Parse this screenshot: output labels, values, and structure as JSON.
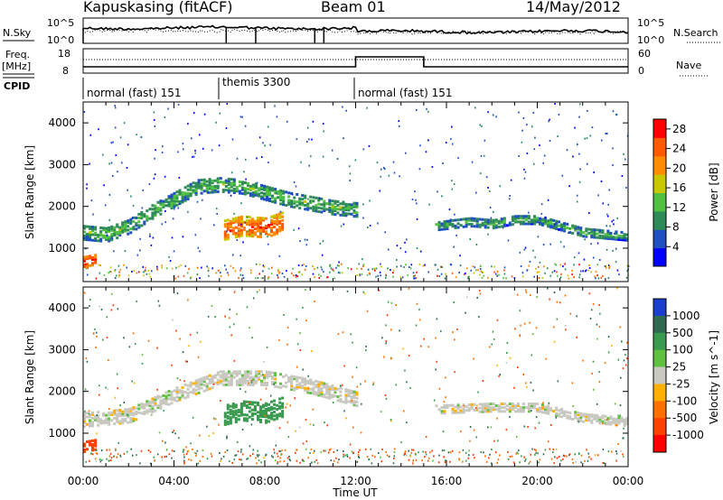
{
  "header": {
    "station": "Kapuskasing (fitACF)",
    "beam": "Beam 01",
    "date": "14/May/2012"
  },
  "noise_panel": {
    "left_label": "N.Sky",
    "right_label": "N.Search",
    "left_ticks": [
      "10^5",
      "10^0"
    ],
    "right_ticks": [
      "10^5",
      "10^0"
    ]
  },
  "freq_panel": {
    "left_label_1": "Freq.",
    "left_label_2": "[MHz]",
    "right_label": "Nave",
    "left_ticks": [
      "18",
      "8"
    ],
    "right_ticks": [
      "60",
      "0"
    ]
  },
  "cpid": {
    "label": "CPID",
    "segments": [
      {
        "label": "normal (fast) 151",
        "start_hour": 0,
        "end_hour": 6
      },
      {
        "label": "themis 3300",
        "start_hour": 6,
        "end_hour": 12
      },
      {
        "label": "normal (fast) 151",
        "start_hour": 12,
        "end_hour": 24
      }
    ]
  },
  "time_axis": {
    "label": "Time UT",
    "ticks": [
      "00:00",
      "04:00",
      "08:00",
      "12:00",
      "16:00",
      "20:00",
      "00:00"
    ]
  },
  "colors": {
    "power_scale": [
      "#0000ff",
      "#2050c0",
      "#2e8b57",
      "#50c040",
      "#c8c800",
      "#ff8c00",
      "#ff5a00",
      "#ff0000"
    ],
    "velocity_scale": [
      "#1a3fd0",
      "#2e6b50",
      "#3a9a50",
      "#60c040",
      "#c8c8c0",
      "#ffb000",
      "#ff7000",
      "#ff4000",
      "#ff0000"
    ],
    "ground_grey": "#c8c8c0"
  },
  "chart_data": [
    {
      "type": "heatmap",
      "title": "Power",
      "ylabel": "Slant Range [km]",
      "xlabel": "",
      "xlim": [
        0,
        24
      ],
      "ylim": [
        200,
        4500
      ],
      "y_ticks": [
        1000,
        2000,
        3000,
        4000
      ],
      "colorbar": {
        "label": "Power [dB]",
        "ticks": [
          4,
          8,
          12,
          16,
          20,
          24,
          28
        ],
        "range": [
          0,
          30
        ]
      },
      "features": [
        {
          "name": "main band",
          "points": [
            [
              0,
              1350
            ],
            [
              1,
              1300
            ],
            [
              2,
              1500
            ],
            [
              3,
              1850
            ],
            [
              4,
              2150
            ],
            [
              5,
              2450
            ],
            [
              6,
              2500
            ],
            [
              7,
              2450
            ],
            [
              8,
              2300
            ],
            [
              9,
              2150
            ],
            [
              10,
              2050
            ],
            [
              11,
              1950
            ],
            [
              12,
              1900
            ]
          ],
          "width_km": 350,
          "power_db": 10
        },
        {
          "name": "near echoes",
          "points": [
            [
              0,
              650
            ],
            [
              0.5,
              700
            ]
          ],
          "width_km": 250,
          "power_db": 24
        },
        {
          "name": "strong blobs",
          "points": [
            [
              6.2,
              1400
            ],
            [
              7,
              1500
            ],
            [
              8,
              1450
            ],
            [
              8.8,
              1600
            ]
          ],
          "width_km": 450,
          "power_db": 22
        },
        {
          "name": "evening band",
          "points": [
            [
              15.5,
              1500
            ],
            [
              17,
              1600
            ],
            [
              18,
              1550
            ],
            [
              19,
              1650
            ],
            [
              20,
              1650
            ],
            [
              21,
              1500
            ],
            [
              22,
              1350
            ],
            [
              24,
              1250
            ]
          ],
          "width_km": 200,
          "power_db": 9
        }
      ]
    },
    {
      "type": "heatmap",
      "title": "Velocity",
      "ylabel": "Slant Range [km]",
      "xlabel": "Time UT",
      "xlim": [
        0,
        24
      ],
      "ylim": [
        200,
        4500
      ],
      "y_ticks": [
        1000,
        2000,
        3000,
        4000
      ],
      "colorbar": {
        "label": "Velocity [m s^-1]",
        "ticks": [
          1000,
          500,
          100,
          25,
          -25,
          -100,
          -500,
          -1000
        ]
      },
      "features": [
        {
          "name": "ground scatter band",
          "points": [
            [
              0,
              1300
            ],
            [
              2,
              1400
            ],
            [
              4,
              1900
            ],
            [
              6,
              2300
            ],
            [
              8,
              2300
            ],
            [
              10,
              2100
            ],
            [
              12,
              1800
            ]
          ],
          "width_km": 350,
          "velocity": 0
        },
        {
          "name": "near echoes",
          "points": [
            [
              0,
              650
            ],
            [
              0.5,
              700
            ]
          ],
          "width_km": 250,
          "velocity": -800
        },
        {
          "name": "green blobs",
          "points": [
            [
              6.2,
              1400
            ],
            [
              7,
              1500
            ],
            [
              8,
              1450
            ],
            [
              8.8,
              1600
            ]
          ],
          "width_km": 450,
          "velocity": 150
        },
        {
          "name": "evening band",
          "points": [
            [
              15.5,
              1550
            ],
            [
              18,
              1600
            ],
            [
              20,
              1600
            ],
            [
              22,
              1350
            ],
            [
              24,
              1250
            ]
          ],
          "width_km": 220,
          "velocity": 0
        }
      ]
    }
  ]
}
